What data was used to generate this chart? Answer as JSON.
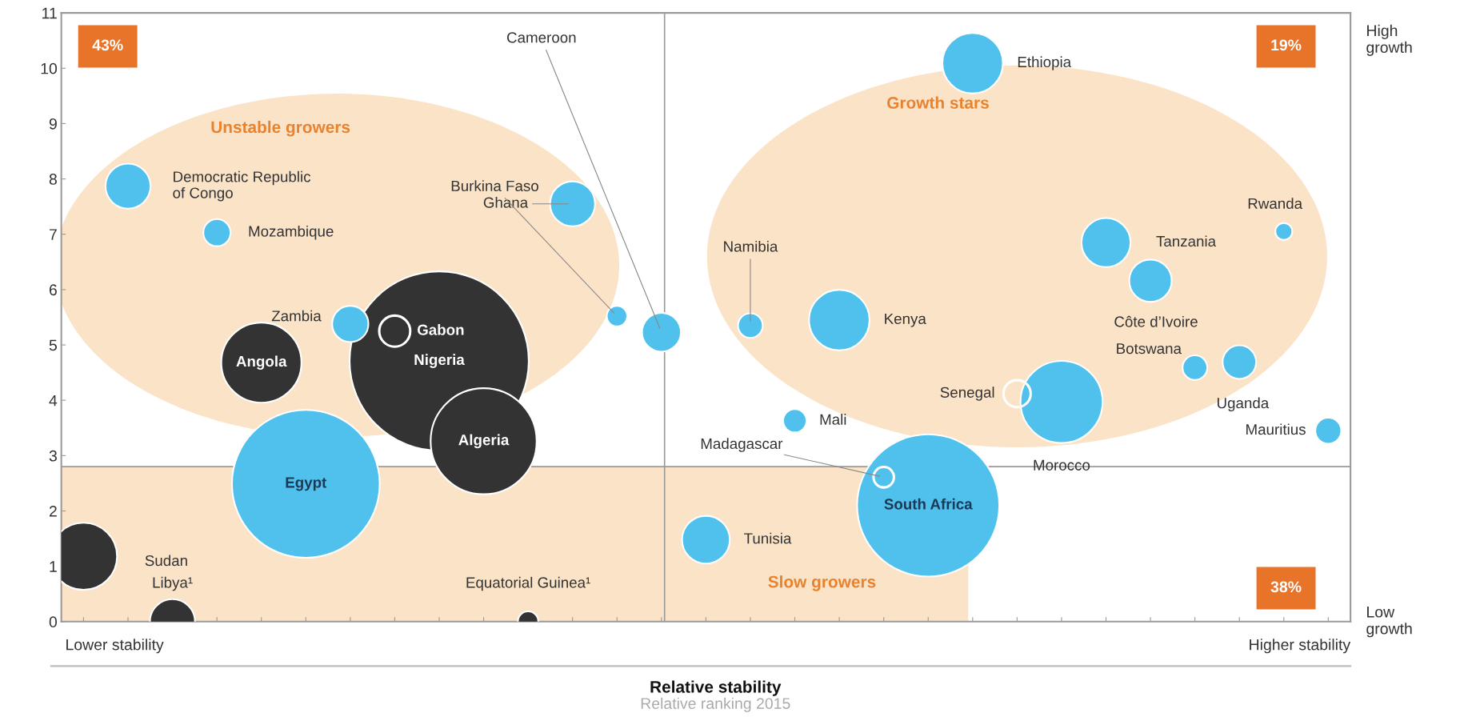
{
  "chart_data": {
    "type": "bubble",
    "xlabel": "Relative stability",
    "categories": [
      null,
      null,
      null,
      null,
      null,
      null,
      null,
      null,
      null,
      null,
      null,
      null,
      null,
      null,
      null,
      null,
      null,
      null,
      null,
      null,
      null,
      null,
      null,
      null,
      null,
      null,
      null,
      null,
      null
    ],
    "series": [
      {
        "values": [
          1.18,
          7.87,
          0.0,
          7.03,
          4.68,
          2.49,
          5.38,
          5.25,
          4.71,
          3.26,
          0.0,
          7.55,
          5.52,
          5.23,
          1.48,
          5.35,
          3.63,
          5.45,
          2.61,
          2.1,
          10.09,
          4.12,
          3.97,
          6.85,
          6.16,
          4.59,
          4.69,
          7.05,
          3.45
        ],
        "sizes": [
          0.14,
          0.063,
          0.063,
          0.023,
          0.2,
          0.68,
          0.041,
          0.03,
          1,
          0.35,
          0.013,
          0.063,
          0.013,
          0.047,
          0.071,
          0.019,
          0.017,
          0.114,
          0.013,
          0.63,
          0.114,
          0.023,
          0.21,
          0.075,
          0.056,
          0.019,
          0.035,
          0.009,
          0.021
        ],
        "colors": [
          "#333333",
          "#4fc1ec",
          "#333333",
          "#4fc1ec",
          "#333333",
          "#4fc1ec",
          "#4fc1ec",
          "#ffffff",
          "#333333",
          "#333333",
          "#333333",
          "#4fc1ec",
          "#4fc1ec",
          "#4fc1ec",
          "#4fc1ec",
          "#4fc1ec",
          "#4fc1ec",
          "#4fc1ec",
          "#ffffff",
          "#4fc1ec",
          "#4fc1ec",
          "#ffffff",
          "#4fc1ec",
          "#4fc1ec",
          "#4fc1ec",
          "#4fc1ec",
          "#4fc1ec",
          "#4fc1ec",
          "#4fc1ec"
        ],
        "value_labels": [
          "Sudan",
          "Democratic Republic\nof Congo",
          "Libya¹",
          "Mozambique",
          "Angola",
          "Egypt",
          "Zambia",
          "Gabon",
          "Nigeria",
          "Algeria",
          "Equatorial Guinea¹",
          "Ghana",
          "Burkina Faso",
          "Cameroon",
          "Tunisia",
          "Namibia",
          "Mali",
          "Kenya",
          "Madagascar",
          "South Africa",
          "Ethiopia",
          "Senegal",
          "Morocco",
          "Tanzania",
          "Côte d’Ivoire",
          "Botswana",
          "Uganda",
          "Rwanda",
          "Mauritius"
        ]
      }
    ],
    "ylim": [
      0,
      11
    ],
    "yticks": [
      0,
      1,
      2,
      3,
      4,
      5,
      6,
      7,
      8,
      9,
      10,
      11
    ],
    "ref_lines": [
      {
        "axis": "y",
        "value": 2.8,
        "color": "#9a9a9a"
      }
    ],
    "annotations": [
      "43%",
      "19%",
      "38%",
      "Unstable growers",
      "Growth stars",
      "Slow growers",
      "High\ngrowth",
      "Low\ngrowth",
      "Lower stability",
      "Higher stability",
      "Relative ranking 2015"
    ],
    "grid": false,
    "legend": false
  }
}
